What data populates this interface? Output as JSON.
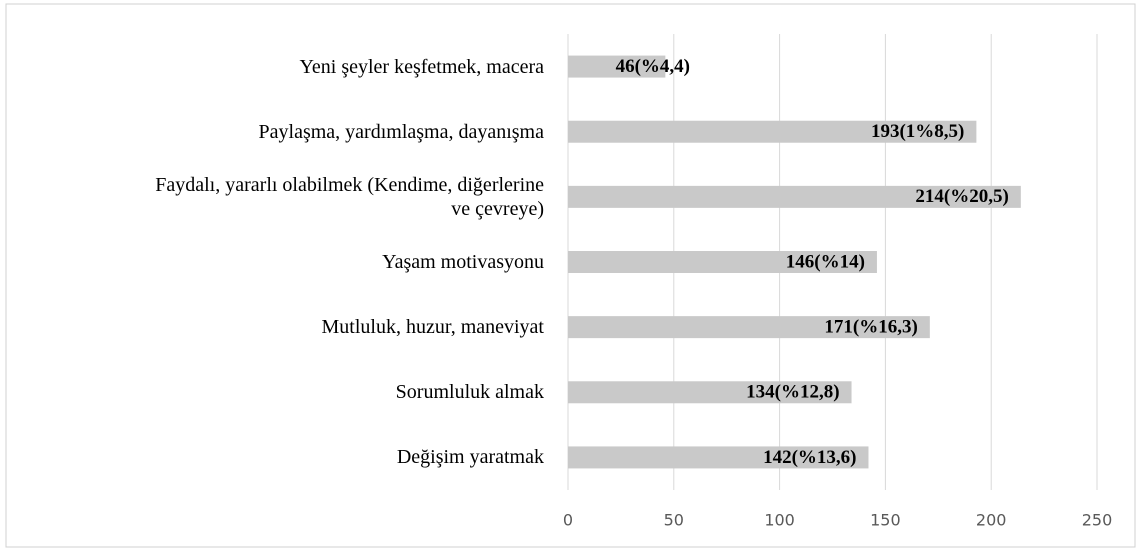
{
  "chart_data": {
    "type": "bar",
    "orientation": "horizontal",
    "categories": [
      "Yeni şeyler keşfetmek, macera",
      "Paylaşma, yardımlaşma, dayanışma",
      "Faydalı, yararlı olabilmek (Kendime, diğerlerine\nve çevreye)",
      "Yaşam motivasyonu",
      "Mutluluk, huzur, maneviyat",
      "Sorumluluk almak",
      "Değişim yaratmak"
    ],
    "values": [
      46,
      193,
      214,
      146,
      171,
      134,
      142
    ],
    "value_labels": [
      "46(%4,4)",
      "193(1%8,5)",
      "214(%20,5)",
      "146(%14)",
      "171(%16,3)",
      "134(%12,8)",
      "142(%13,6)"
    ],
    "color": "#c9c9c9",
    "xlim": [
      0,
      250
    ],
    "xticks": [
      0,
      50,
      100,
      150,
      200,
      250
    ],
    "grid": true
  }
}
